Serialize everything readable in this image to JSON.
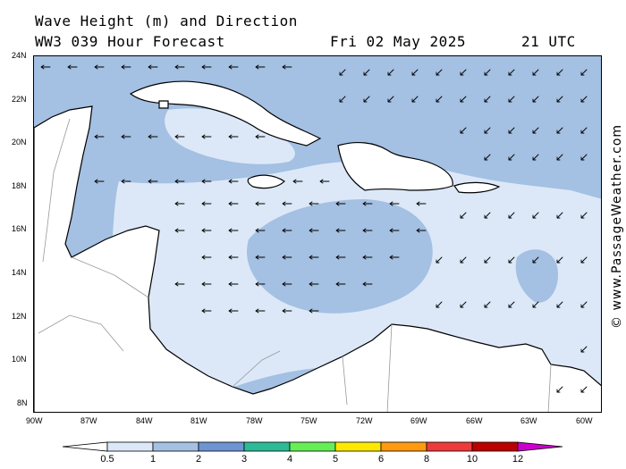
{
  "header": {
    "title": "Wave Height (m) and Direction",
    "model_line": "WW3 039 Hour Forecast",
    "date": "Fri 02 May 2025",
    "time": "21 UTC"
  },
  "credit": "© www.PassageWeather.com",
  "map": {
    "lat_range_deg_N": [
      7.5,
      24
    ],
    "lon_range_deg_W": [
      90,
      59
    ],
    "lat_ticks": [
      "24N",
      "22N",
      "20N",
      "18N",
      "16N",
      "14N",
      "12N",
      "10N",
      "8N"
    ],
    "lon_ticks": [
      "90W",
      "87W",
      "84W",
      "81W",
      "78W",
      "75W",
      "72W",
      "69W",
      "66W",
      "63W",
      "60W"
    ],
    "land_color": "#ffffff",
    "coast_color": "#000000",
    "border_color": "#999999",
    "arrow_color": "#000000",
    "prevailing_wave_direction": "waves moving toward the west and southwest (trade-wind swell)"
  },
  "scale": {
    "labels": [
      "0.5",
      "1",
      "2",
      "3",
      "4",
      "5",
      "6",
      "8",
      "10",
      "12"
    ],
    "colors": [
      "#dce8f8",
      "#a4c0e2",
      "#6d95d2",
      "#2dbb96",
      "#66ee55",
      "#ffe800",
      "#ff9a10",
      "#ee3a3a",
      "#bb0000",
      "#cc00cc"
    ],
    "low_color": "#ffffff"
  }
}
